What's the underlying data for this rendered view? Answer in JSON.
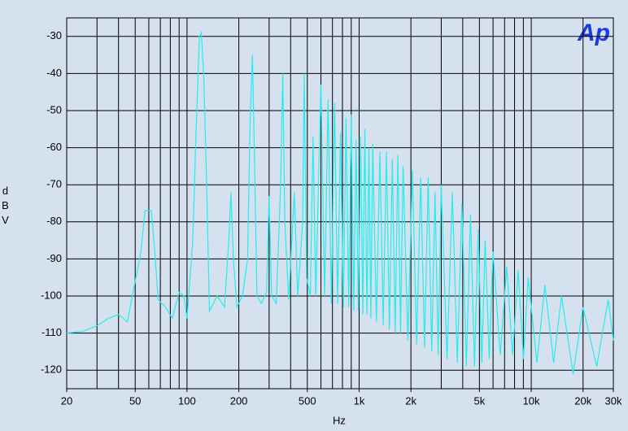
{
  "chart_data": {
    "type": "line",
    "log_x": true,
    "grid": true,
    "logo": "Ap",
    "x_label": "Hz",
    "y_label": "dBV",
    "xlim": [
      20,
      30000
    ],
    "ylim": [
      -125,
      -25
    ],
    "yticks": [
      -30,
      -40,
      -50,
      -60,
      -70,
      -80,
      -90,
      -100,
      -110,
      -120
    ],
    "xticks": [
      20,
      50,
      100,
      200,
      500,
      {
        "value": 1000,
        "label": "1k"
      },
      {
        "value": 2000,
        "label": "2k"
      },
      {
        "value": 5000,
        "label": "5k"
      },
      {
        "value": 10000,
        "label": "10k"
      },
      {
        "value": 20000,
        "label": "20k"
      },
      {
        "value": 30000,
        "label": "30k"
      }
    ],
    "xgrid": [
      20,
      30,
      40,
      50,
      60,
      70,
      80,
      90,
      100,
      200,
      300,
      400,
      500,
      600,
      700,
      800,
      900,
      1000,
      2000,
      3000,
      4000,
      5000,
      6000,
      7000,
      8000,
      9000,
      10000,
      20000,
      30000
    ],
    "series": [
      {
        "color": "#22eeee",
        "x": [
          20,
          25,
          30,
          35,
          40,
          45,
          50,
          54,
          57,
          62,
          65,
          68,
          75,
          82,
          90,
          96,
          100,
          108,
          113,
          118,
          121,
          125,
          130,
          135,
          150,
          165,
          175,
          180,
          186,
          195,
          210,
          225,
          232,
          240,
          246,
          255,
          270,
          290,
          300,
          310,
          330,
          350,
          360,
          370,
          390,
          420,
          440,
          470,
          480,
          495,
          520,
          540,
          560,
          600,
          630,
          660,
          690,
          720,
          750,
          780,
          810,
          840,
          870,
          900,
          930,
          960,
          990,
          1020,
          1050,
          1080,
          1110,
          1140,
          1170,
          1200,
          1260,
          1320,
          1380,
          1440,
          1500,
          1560,
          1620,
          1680,
          1740,
          1800,
          1920,
          2040,
          2160,
          2280,
          2400,
          2520,
          2640,
          2760,
          2880,
          3000,
          3240,
          3480,
          3720,
          3960,
          4200,
          4440,
          4680,
          4920,
          5160,
          5400,
          5700,
          6000,
          6600,
          7200,
          7800,
          8400,
          9000,
          9600,
          10800,
          12000,
          13500,
          15000,
          17500,
          20000,
          24000,
          28000,
          30000
        ],
        "values": [
          -110,
          -109.5,
          -108,
          -106,
          -105,
          -107,
          -96,
          -88,
          -77,
          -77,
          -88,
          -101,
          -103,
          -106,
          -99,
          -100,
          -106,
          -85,
          -55,
          -30,
          -29,
          -40,
          -70,
          -104,
          -100,
          -103,
          -85,
          -72,
          -90,
          -103,
          -100,
          -90,
          -55,
          -35,
          -60,
          -100,
          -102,
          -99,
          -73,
          -100,
          -102,
          -70,
          -40,
          -80,
          -101,
          -72,
          -100,
          -80,
          -40,
          -95,
          -100,
          -57,
          -100,
          -43,
          -100,
          -47,
          -102,
          -48,
          -102,
          -56,
          -103,
          -52,
          -103,
          -51,
          -104,
          -58,
          -104,
          -57,
          -105,
          -55,
          -105,
          -60,
          -106,
          -59,
          -107,
          -61,
          -108,
          -61,
          -109,
          -63,
          -110,
          -62,
          -110,
          -65,
          -112,
          -66,
          -113,
          -68,
          -114,
          -68,
          -115,
          -72,
          -116,
          -70,
          -117,
          -72,
          -118,
          -75,
          -119,
          -78,
          -119,
          -82,
          -118,
          -85,
          -117,
          -88,
          -116,
          -92,
          -116,
          -93,
          -117,
          -95,
          -118,
          -97,
          -118,
          -100,
          -121,
          -103,
          -119,
          -101,
          -112
        ]
      }
    ]
  }
}
